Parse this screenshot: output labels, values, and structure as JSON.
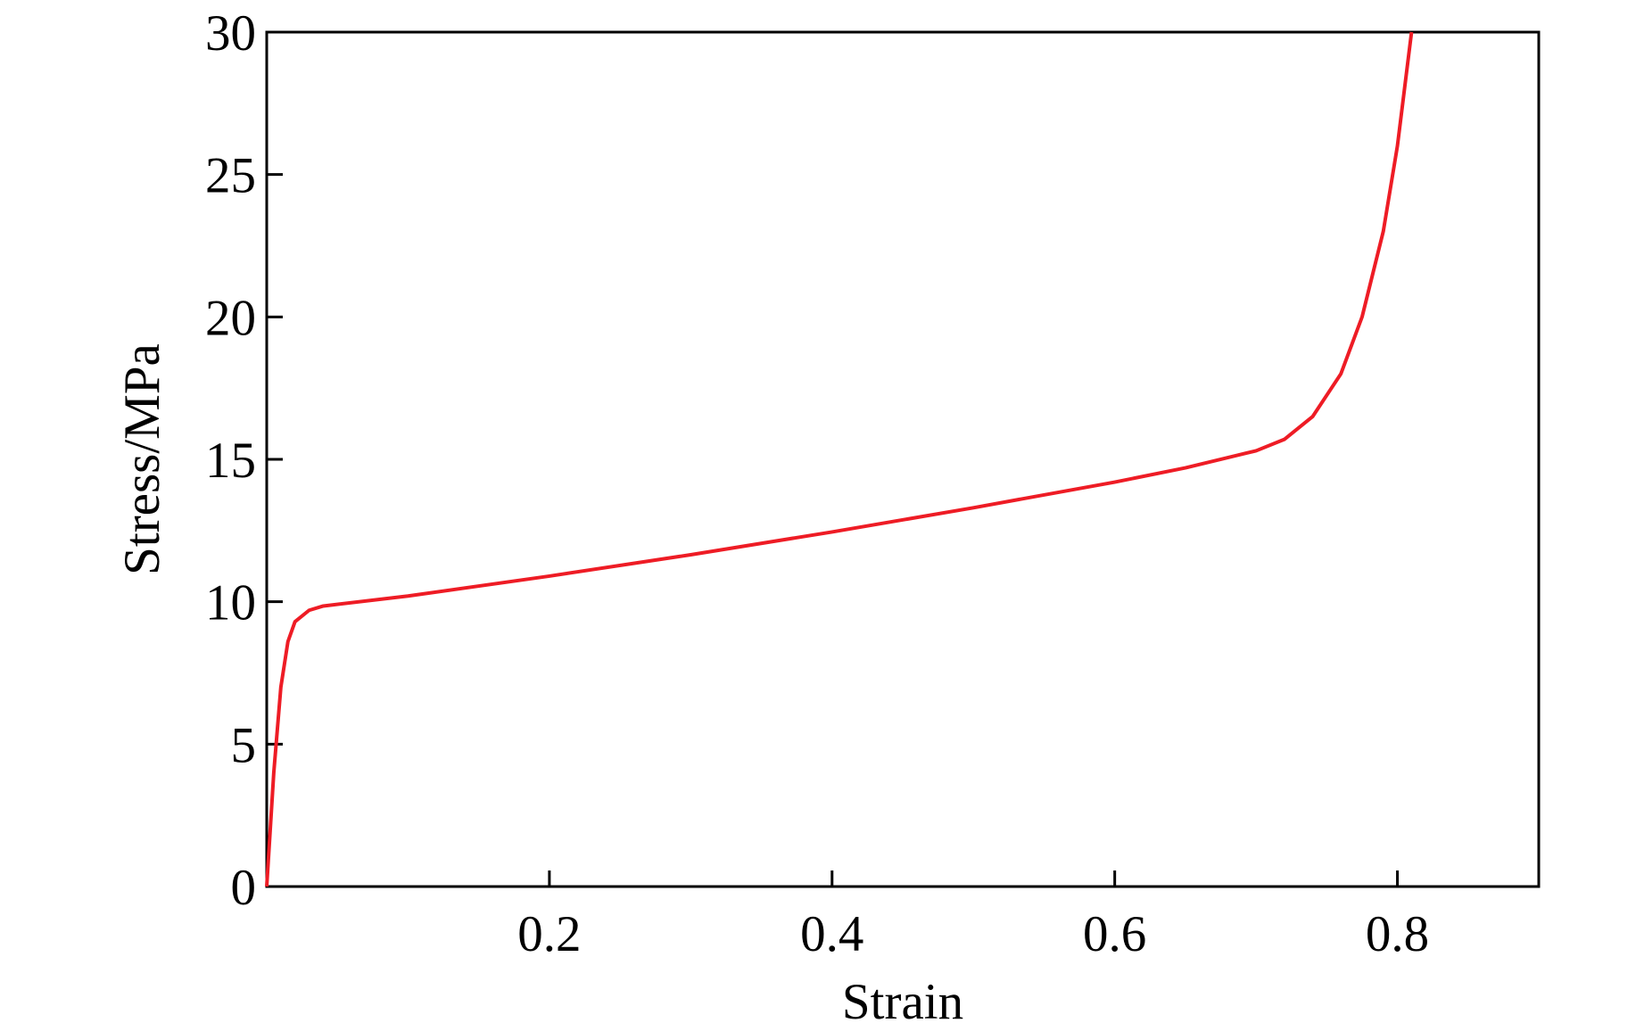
{
  "chart_data": {
    "type": "line",
    "x_label": "Strain",
    "y_label": "Stress/MPa",
    "x": [
      0,
      0.005,
      0.01,
      0.015,
      0.02,
      0.03,
      0.04,
      0.1,
      0.2,
      0.3,
      0.4,
      0.5,
      0.6,
      0.65,
      0.7,
      0.72,
      0.74,
      0.76,
      0.775,
      0.79,
      0.8,
      0.81
    ],
    "series": [
      {
        "name": "Stress",
        "color": "#ee1c25",
        "values": [
          0,
          4,
          7,
          8.6,
          9.3,
          9.7,
          9.85,
          10.2,
          10.9,
          11.65,
          12.45,
          13.3,
          14.2,
          14.7,
          15.3,
          15.7,
          16.5,
          18,
          20,
          23,
          26,
          30
        ]
      }
    ],
    "xlim": [
      0,
      0.9
    ],
    "xticks": [
      0.2,
      0.4,
      0.6,
      0.8
    ],
    "ylim": [
      0,
      30
    ],
    "yticks": [
      0,
      5,
      10,
      15,
      20,
      25,
      30
    ],
    "grid": false
  }
}
